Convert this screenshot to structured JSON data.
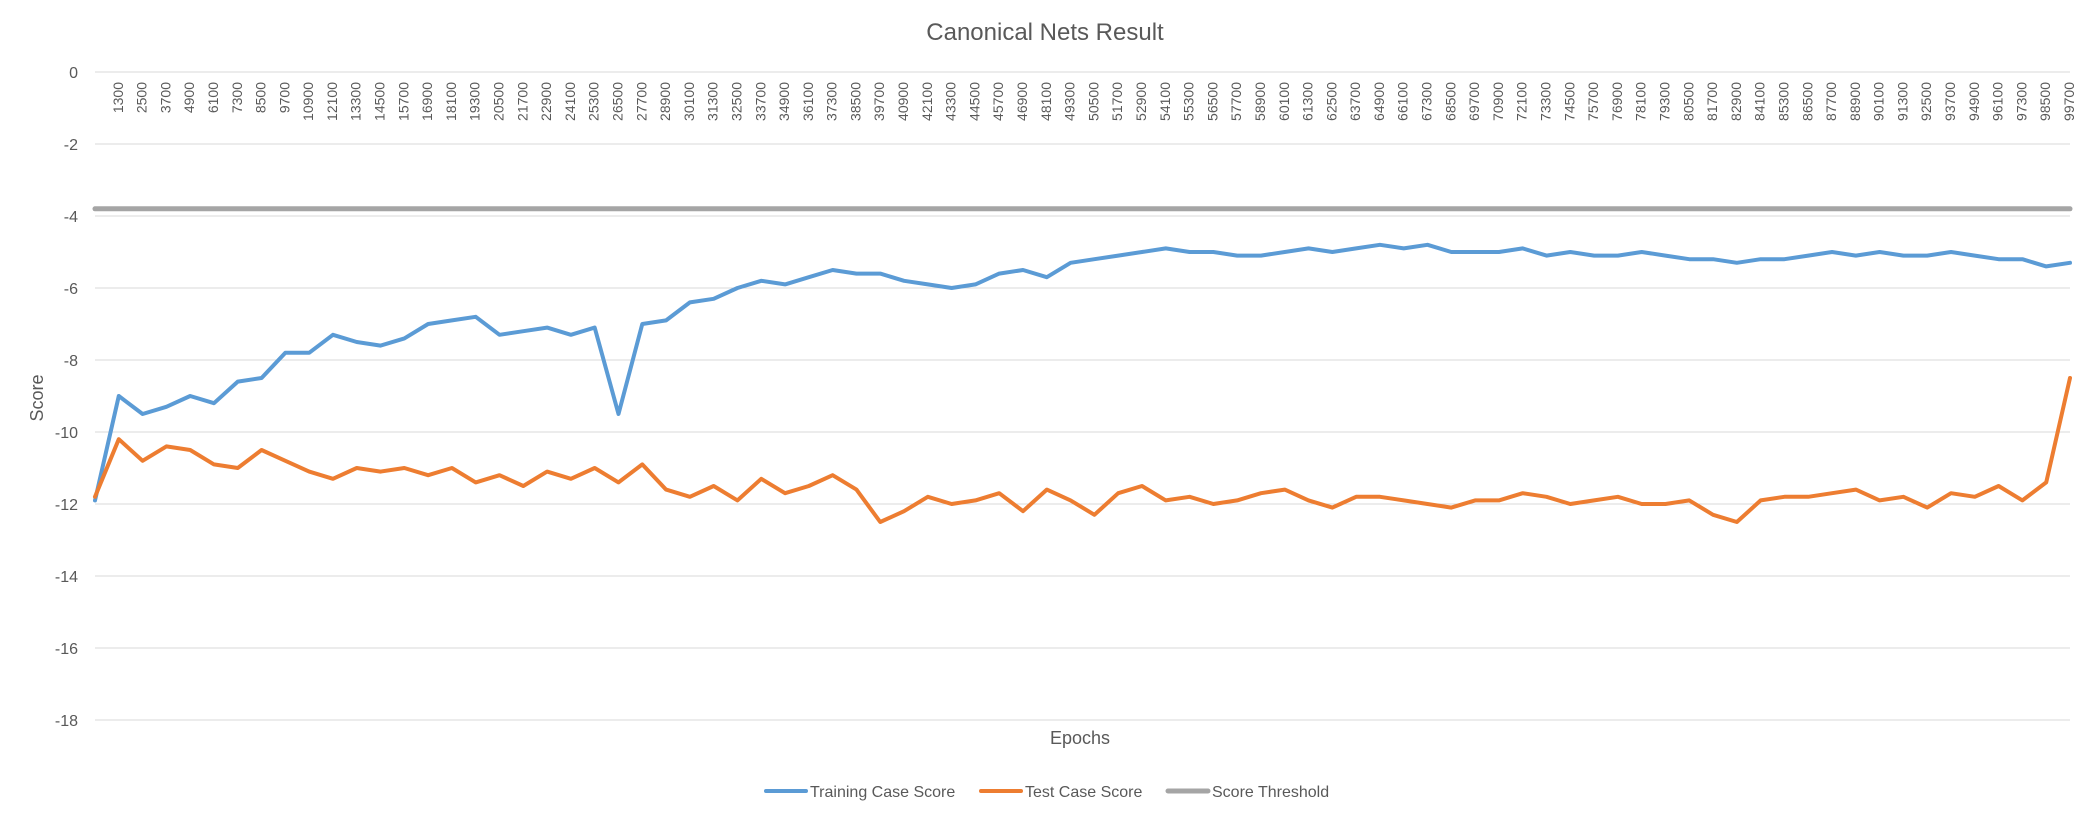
{
  "chart_data": {
    "type": "line",
    "title": "Canonical Nets Result",
    "xlabel": "Epochs",
    "ylabel": "Score",
    "ylim": [
      -18,
      0
    ],
    "yticks": [
      0,
      -2,
      -4,
      -6,
      -8,
      -10,
      -12,
      -14,
      -16,
      -18
    ],
    "x_axis_position": "top",
    "grid": "horizontal",
    "legend_position": "bottom",
    "x_ticks": [
      "1300",
      "2500",
      "3700",
      "4900",
      "6100",
      "7300",
      "8500",
      "9700",
      "10900",
      "12100",
      "13300",
      "14500",
      "15700",
      "16900",
      "18100",
      "19300",
      "20500",
      "21700",
      "22900",
      "24100",
      "25300",
      "26500",
      "27700",
      "28900",
      "30100",
      "31300",
      "32500",
      "33700",
      "34900",
      "36100",
      "37300",
      "38500",
      "39700",
      "40900",
      "42100",
      "43300",
      "44500",
      "45700",
      "46900",
      "48100",
      "49300",
      "50500",
      "51700",
      "52900",
      "54100",
      "55300",
      "56500",
      "57700",
      "58900",
      "60100",
      "61300",
      "62500",
      "63700",
      "64900",
      "66100",
      "67300",
      "68500",
      "69700",
      "70900",
      "72100",
      "73300",
      "74500",
      "75700",
      "76900",
      "78100",
      "79300",
      "80500",
      "81700",
      "82900",
      "84100",
      "85300",
      "86500",
      "87700",
      "88900",
      "90100",
      "91300",
      "92500",
      "93700",
      "94900",
      "96100",
      "97300",
      "98500",
      "99700"
    ],
    "x_range": [
      100,
      99700
    ],
    "series": [
      {
        "name": "Training Case Score",
        "color": "#5B9BD5",
        "x": [
          100,
          1300,
          2500,
          3700,
          4900,
          6100,
          7300,
          8500,
          9700,
          10900,
          12100,
          13300,
          14500,
          15700,
          16900,
          18100,
          19300,
          20500,
          21700,
          22900,
          24100,
          25300,
          26500,
          27700,
          28900,
          30100,
          31300,
          32500,
          33700,
          34900,
          36100,
          37300,
          38500,
          39700,
          40900,
          42100,
          43300,
          44500,
          45700,
          46900,
          48100,
          49300,
          50500,
          51700,
          52900,
          54100,
          55300,
          56500,
          57700,
          58900,
          60100,
          61300,
          62500,
          63700,
          64900,
          66100,
          67300,
          68500,
          69700,
          70900,
          72100,
          73300,
          74500,
          75700,
          76900,
          78100,
          79300,
          80500,
          81700,
          82900,
          84100,
          85300,
          86500,
          87700,
          88900,
          90100,
          91300,
          92500,
          93700,
          94900,
          96100,
          97300,
          98500,
          99700
        ],
        "values": [
          -11.9,
          -9.0,
          -9.5,
          -9.3,
          -9.0,
          -9.2,
          -8.6,
          -8.5,
          -7.8,
          -7.8,
          -7.3,
          -7.5,
          -7.6,
          -7.4,
          -7.0,
          -6.9,
          -6.8,
          -7.3,
          -7.2,
          -7.1,
          -7.3,
          -7.1,
          -9.5,
          -7.0,
          -6.9,
          -6.4,
          -6.3,
          -6.0,
          -5.8,
          -5.9,
          -5.7,
          -5.5,
          -5.6,
          -5.6,
          -5.8,
          -5.9,
          -6.0,
          -5.9,
          -5.6,
          -5.5,
          -5.7,
          -5.3,
          -5.2,
          -5.1,
          -5.0,
          -4.9,
          -5.0,
          -5.0,
          -5.1,
          -5.1,
          -5.0,
          -4.9,
          -5.0,
          -4.9,
          -4.8,
          -4.9,
          -4.8,
          -5.0,
          -5.0,
          -5.0,
          -4.9,
          -5.1,
          -5.0,
          -5.1,
          -5.1,
          -5.0,
          -5.1,
          -5.2,
          -5.2,
          -5.3,
          -5.2,
          -5.2,
          -5.1,
          -5.0,
          -5.1,
          -5.0,
          -5.1,
          -5.1,
          -5.0,
          -5.1,
          -5.2,
          -5.2,
          -5.4,
          -5.3
        ]
      },
      {
        "name": "Test Case Score",
        "color": "#ED7D31",
        "x": [
          100,
          1300,
          2500,
          3700,
          4900,
          6100,
          7300,
          8500,
          9700,
          10900,
          12100,
          13300,
          14500,
          15700,
          16900,
          18100,
          19300,
          20500,
          21700,
          22900,
          24100,
          25300,
          26500,
          27700,
          28900,
          30100,
          31300,
          32500,
          33700,
          34900,
          36100,
          37300,
          38500,
          39700,
          40900,
          42100,
          43300,
          44500,
          45700,
          46900,
          48100,
          49300,
          50500,
          51700,
          52900,
          54100,
          55300,
          56500,
          57700,
          58900,
          60100,
          61300,
          62500,
          63700,
          64900,
          66100,
          67300,
          68500,
          69700,
          70900,
          72100,
          73300,
          74500,
          75700,
          76900,
          78100,
          79300,
          80500,
          81700,
          82900,
          84100,
          85300,
          86500,
          87700,
          88900,
          90100,
          91300,
          92500,
          93700,
          94900,
          96100,
          97300,
          98500,
          99700
        ],
        "values": [
          -11.8,
          -10.2,
          -10.8,
          -10.4,
          -10.5,
          -10.9,
          -11.0,
          -10.5,
          -10.8,
          -11.1,
          -11.3,
          -11.0,
          -11.1,
          -11.0,
          -11.2,
          -11.0,
          -11.4,
          -11.2,
          -11.5,
          -11.1,
          -11.3,
          -11.0,
          -11.4,
          -10.9,
          -11.6,
          -11.8,
          -11.5,
          -11.9,
          -11.3,
          -11.7,
          -11.5,
          -11.2,
          -11.6,
          -12.5,
          -12.2,
          -11.8,
          -12.0,
          -11.9,
          -11.7,
          -12.2,
          -11.6,
          -11.9,
          -12.3,
          -11.7,
          -11.5,
          -11.9,
          -11.8,
          -12.0,
          -11.9,
          -11.7,
          -11.6,
          -11.9,
          -12.1,
          -11.8,
          -11.8,
          -11.9,
          -12.0,
          -12.1,
          -11.9,
          -11.9,
          -11.7,
          -11.8,
          -12.0,
          -11.9,
          -11.8,
          -12.0,
          -12.0,
          -11.9,
          -12.3,
          -12.5,
          -11.9,
          -11.8,
          -11.8,
          -11.7,
          -11.6,
          -11.9,
          -11.8,
          -12.1,
          -11.7,
          -11.8,
          -11.5,
          -11.9,
          -11.4,
          -8.5
        ]
      },
      {
        "name": "Score Threshold",
        "color": "#A5A5A5",
        "x": [
          100,
          99700
        ],
        "values": [
          -3.8,
          -3.8
        ]
      }
    ]
  }
}
